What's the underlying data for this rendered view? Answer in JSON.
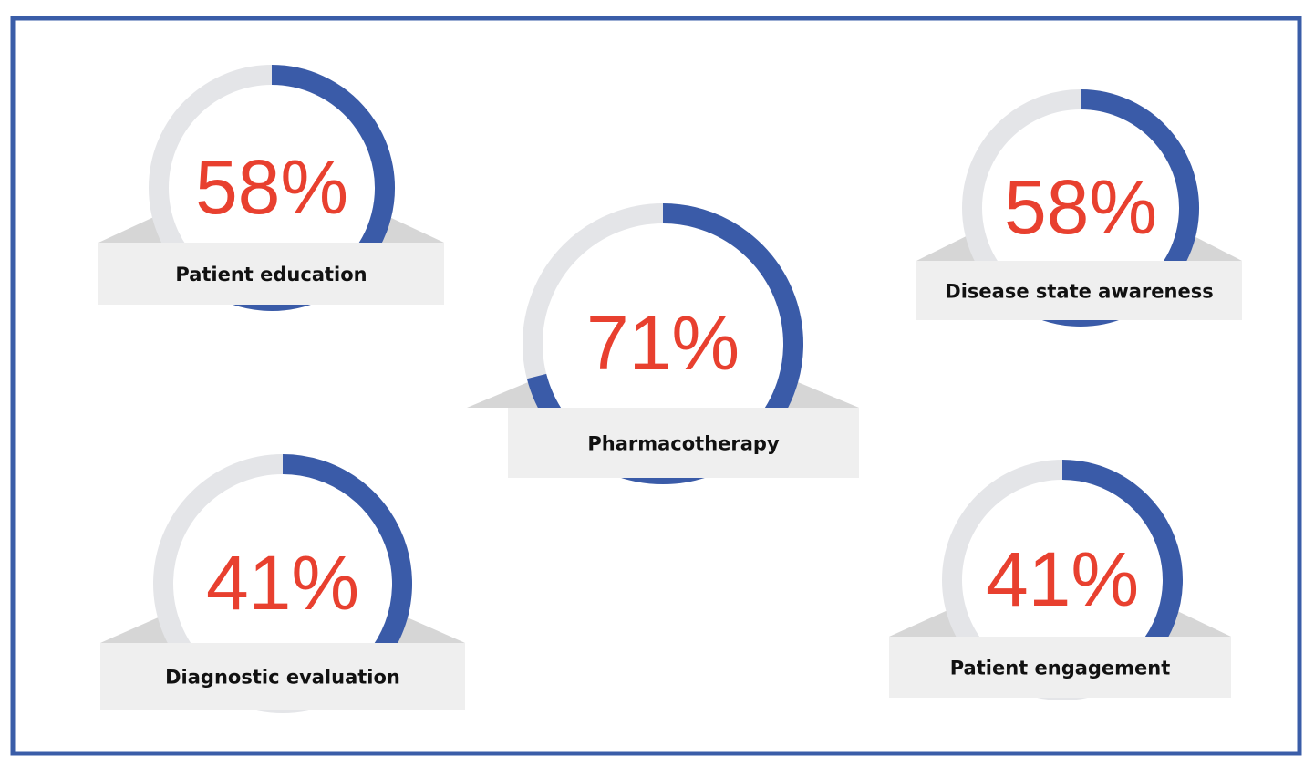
{
  "chart_data": {
    "type": "ring",
    "categories": [
      "Patient education",
      "Pharmacotherapy",
      "Disease state awareness",
      "Diagnostic evaluation",
      "Patient engagement"
    ],
    "values": [
      58,
      71,
      58,
      41,
      41
    ],
    "value_labels": [
      "58%",
      "71%",
      "58%",
      "41%",
      "41%"
    ],
    "color": "#3a5ba8",
    "track_color": "#e4e5e8",
    "label_color": "#e8402f"
  }
}
